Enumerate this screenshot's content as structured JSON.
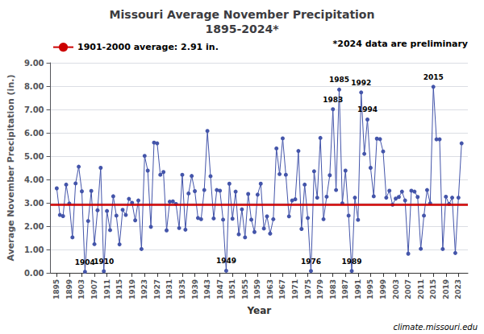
{
  "chart_data": {
    "type": "line",
    "title": "Missouri Average November Precipitation\n1895-2024*",
    "x_label": "Year",
    "y_label": "Average November Precipitation (in.)",
    "x": [
      1895,
      1896,
      1897,
      1898,
      1899,
      1900,
      1901,
      1902,
      1903,
      1904,
      1905,
      1906,
      1907,
      1908,
      1909,
      1910,
      1911,
      1912,
      1913,
      1914,
      1915,
      1916,
      1917,
      1918,
      1919,
      1920,
      1921,
      1922,
      1923,
      1924,
      1925,
      1926,
      1927,
      1928,
      1929,
      1930,
      1931,
      1932,
      1933,
      1934,
      1935,
      1936,
      1937,
      1938,
      1939,
      1940,
      1941,
      1942,
      1943,
      1944,
      1945,
      1946,
      1947,
      1948,
      1949,
      1950,
      1951,
      1952,
      1953,
      1954,
      1955,
      1956,
      1957,
      1958,
      1959,
      1960,
      1961,
      1962,
      1963,
      1964,
      1965,
      1966,
      1967,
      1968,
      1969,
      1970,
      1971,
      1972,
      1973,
      1974,
      1975,
      1976,
      1977,
      1978,
      1979,
      1980,
      1981,
      1982,
      1983,
      1984,
      1985,
      1986,
      1987,
      1988,
      1989,
      1990,
      1991,
      1992,
      1993,
      1994,
      1995,
      1996,
      1997,
      1998,
      1999,
      2000,
      2001,
      2002,
      2003,
      2004,
      2005,
      2006,
      2007,
      2008,
      2009,
      2010,
      2011,
      2012,
      2013,
      2014,
      2015,
      2016,
      2017,
      2018,
      2019,
      2020,
      2021,
      2022,
      2023,
      2024
    ],
    "values": [
      3.62,
      2.48,
      2.43,
      3.78,
      2.97,
      1.52,
      3.83,
      4.55,
      3.49,
      0.05,
      2.22,
      3.51,
      1.23,
      2.68,
      4.5,
      0.07,
      2.65,
      1.83,
      3.28,
      2.45,
      1.22,
      2.7,
      2.48,
      3.17,
      3.0,
      2.25,
      3.1,
      1.02,
      5.01,
      4.38,
      1.97,
      5.58,
      5.55,
      4.2,
      4.32,
      1.82,
      3.05,
      3.06,
      2.95,
      1.92,
      4.2,
      1.85,
      3.4,
      4.15,
      3.5,
      2.35,
      2.3,
      3.55,
      6.08,
      4.14,
      2.33,
      3.55,
      3.52,
      2.28,
      0.09,
      3.82,
      2.32,
      3.48,
      1.65,
      2.72,
      1.52,
      3.38,
      2.28,
      1.75,
      3.35,
      3.82,
      1.9,
      2.42,
      1.68,
      2.3,
      5.33,
      4.23,
      5.76,
      4.2,
      2.42,
      3.1,
      3.15,
      5.22,
      1.88,
      3.78,
      2.35,
      0.08,
      4.35,
      3.22,
      5.78,
      2.3,
      3.26,
      4.18,
      7.01,
      3.55,
      7.85,
      2.98,
      4.38,
      2.45,
      0.08,
      3.22,
      2.27,
      7.73,
      5.1,
      6.57,
      4.5,
      3.28,
      5.75,
      5.73,
      5.2,
      3.22,
      3.52,
      2.92,
      3.18,
      3.25,
      3.48,
      3.1,
      0.82,
      3.52,
      3.48,
      3.25,
      1.03,
      2.45,
      3.55,
      2.98,
      7.97,
      5.72,
      5.72,
      1.02,
      3.26,
      2.95,
      3.22,
      0.85,
      3.22,
      5.55
    ],
    "color": "#4455AA",
    "marker": "circle",
    "xlim": [
      1893,
      2026
    ],
    "xticks": [
      1895,
      1899,
      1903,
      1907,
      1911,
      1915,
      1919,
      1923,
      1927,
      1931,
      1935,
      1939,
      1943,
      1947,
      1951,
      1955,
      1959,
      1963,
      1967,
      1971,
      1975,
      1979,
      1983,
      1987,
      1991,
      1995,
      1999,
      2003,
      2007,
      2011,
      2015,
      2019,
      2023
    ],
    "ylim": [
      0.0,
      9.0
    ],
    "yticks": [
      {
        "value": 0.0,
        "label": "0.00"
      },
      {
        "value": 1.0,
        "label": "1.00"
      },
      {
        "value": 2.0,
        "label": "2.00"
      },
      {
        "value": 3.0,
        "label": "3.00"
      },
      {
        "value": 4.0,
        "label": "4.00"
      },
      {
        "value": 5.0,
        "label": "5.00"
      },
      {
        "value": 6.0,
        "label": "6.00"
      },
      {
        "value": 7.0,
        "label": "7.00"
      },
      {
        "value": 8.0,
        "label": "8.00"
      },
      {
        "value": 9.0,
        "label": "9.00"
      }
    ],
    "grid": "y",
    "legend": "upper left",
    "reference_line": {
      "value": 2.91,
      "label": "1901-2000 average: 2.91 in.",
      "color": "#CC0000"
    },
    "annotations": [
      {
        "x": 1904,
        "y": 0.05,
        "text": "1904"
      },
      {
        "x": 1910,
        "y": 0.07,
        "text": "1910"
      },
      {
        "x": 1949,
        "y": 0.09,
        "text": "1949"
      },
      {
        "x": 1976,
        "y": 0.08,
        "text": "1976"
      },
      {
        "x": 1989,
        "y": 0.08,
        "text": "1989"
      },
      {
        "x": 1983,
        "y": 7.01,
        "text": "1983"
      },
      {
        "x": 1985,
        "y": 7.85,
        "text": "1985"
      },
      {
        "x": 1992,
        "y": 7.73,
        "text": "1992"
      },
      {
        "x": 1994,
        "y": 6.57,
        "text": "1994"
      },
      {
        "x": 2015,
        "y": 7.97,
        "text": "2015"
      }
    ],
    "note": "*2024 data are preliminary",
    "source": "climate.missouri.edu"
  }
}
